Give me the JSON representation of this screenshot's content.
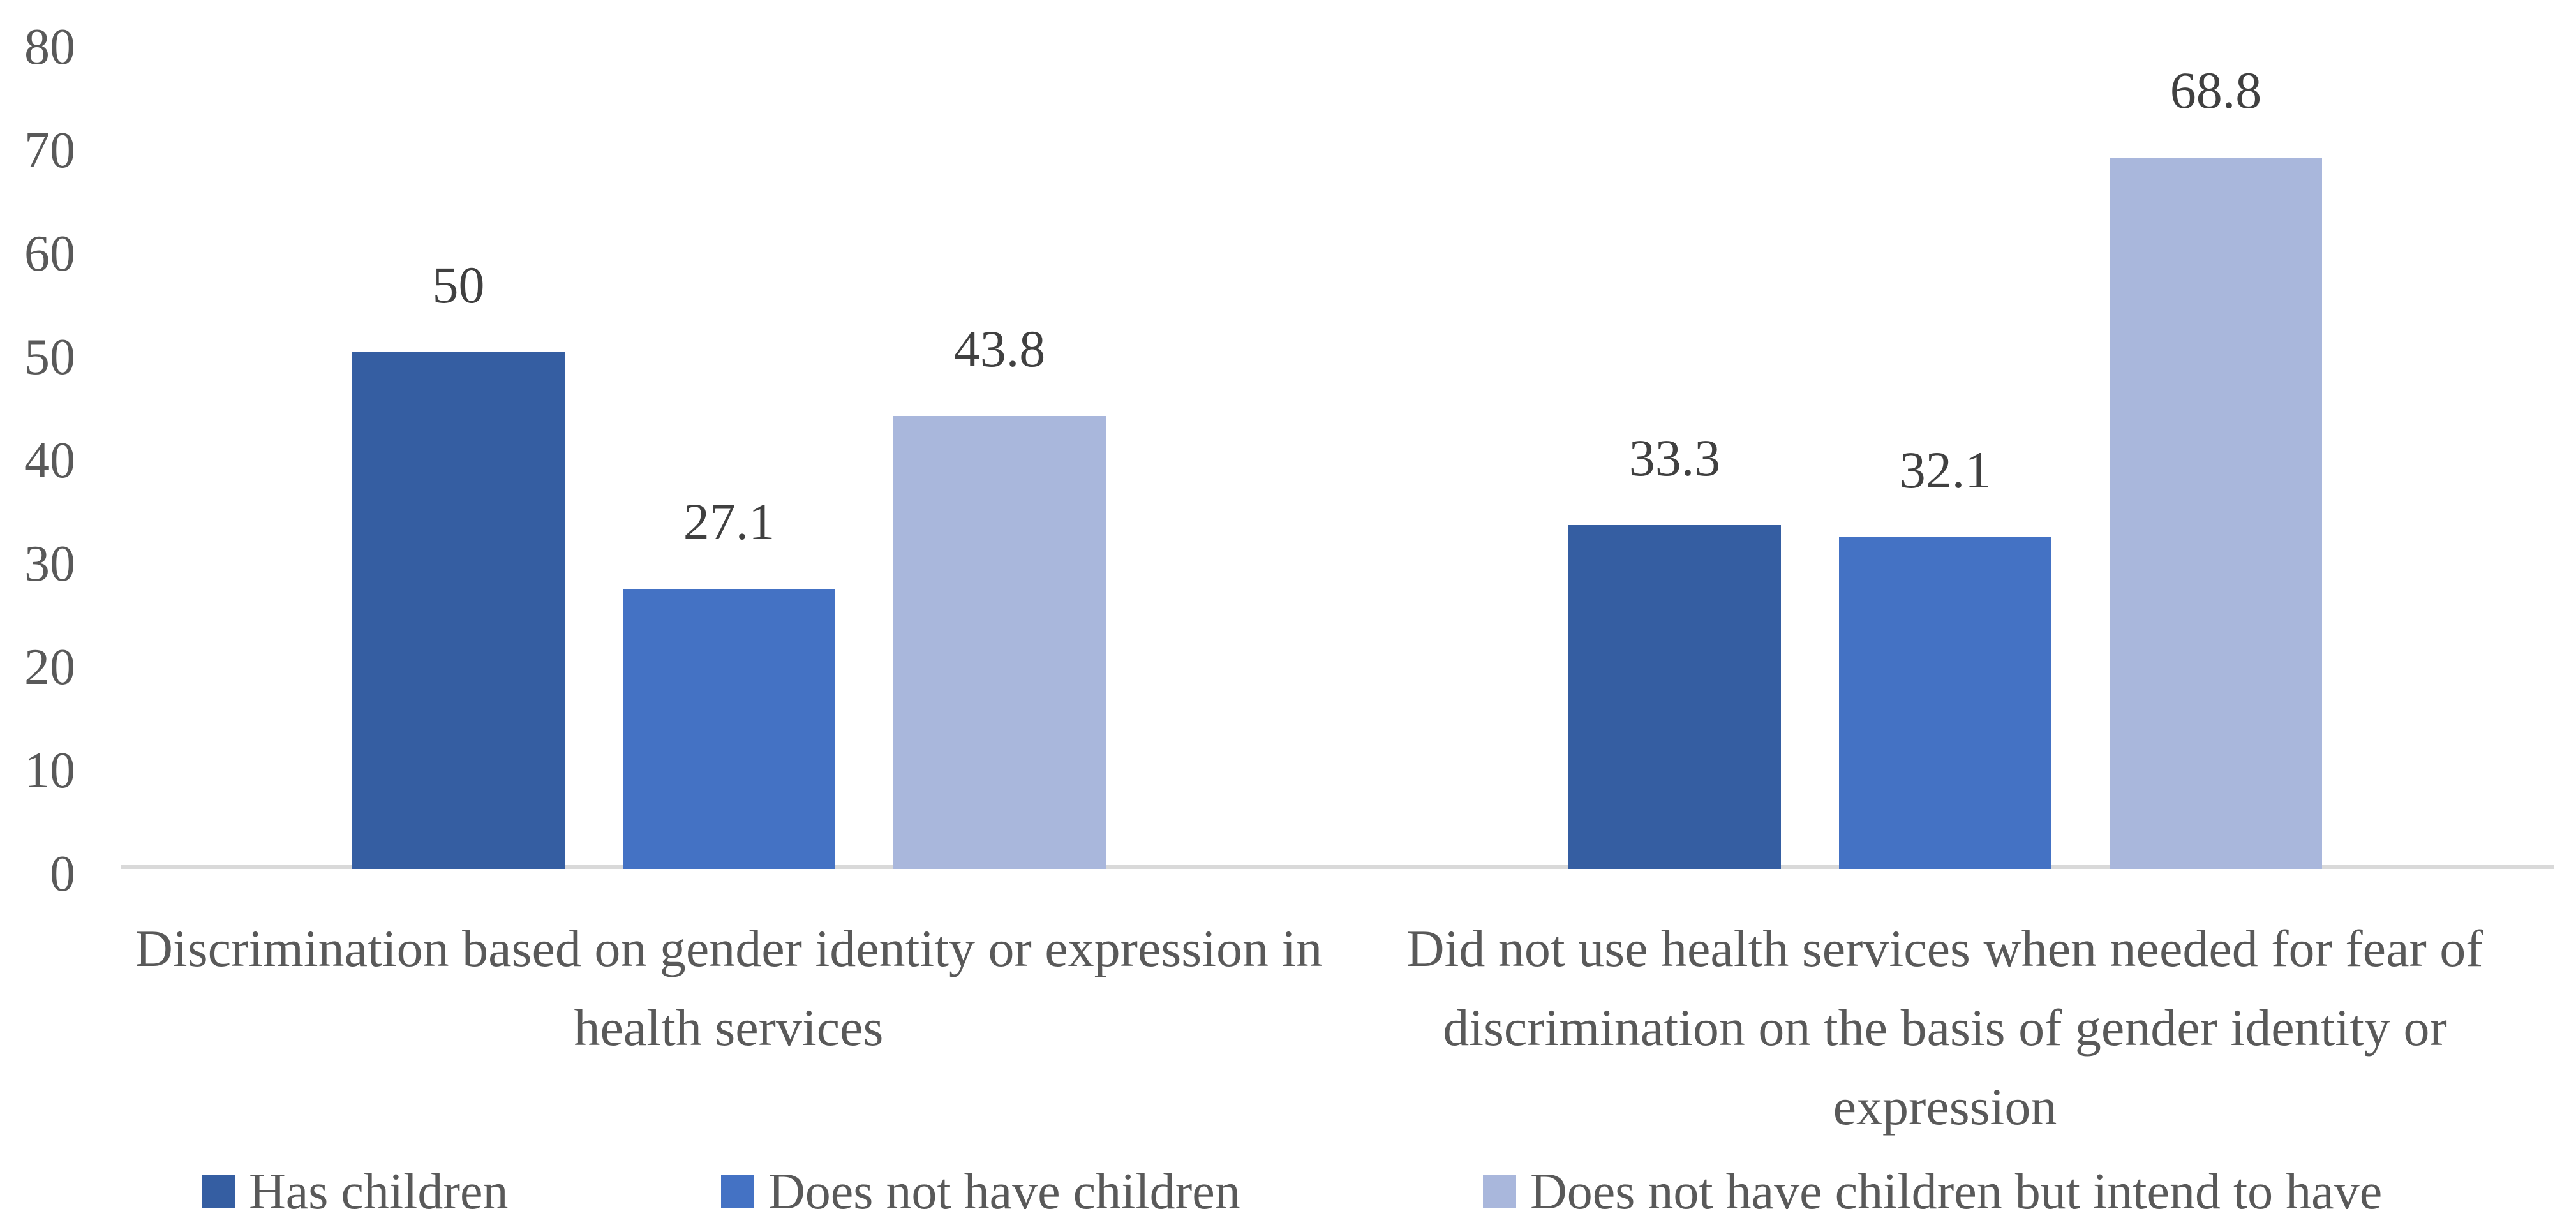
{
  "chart_data": {
    "type": "bar",
    "title": "",
    "subtitle": "",
    "xlabel": "",
    "ylabel": "",
    "ylim": [
      0,
      80
    ],
    "yticks": [
      0,
      10,
      20,
      30,
      40,
      50,
      60,
      70,
      80
    ],
    "grid": false,
    "legend_position": "bottom",
    "categories": [
      "Discrimination based on gender identity or expression in health services",
      "Did not use health services when needed for fear of discrimination on the basis of gender identity or expression"
    ],
    "category_lines": [
      [
        "Discrimination based on gender identity or expression in",
        "health services"
      ],
      [
        "Did not use health services when needed for fear of",
        "discrimination on the basis of gender identity or",
        "expression"
      ]
    ],
    "series": [
      {
        "name": "Has children",
        "color": "#355EA2",
        "values": [
          50,
          33.3
        ],
        "labels": [
          "50",
          "33.3"
        ]
      },
      {
        "name": "Does not have children",
        "color": "#4472C4",
        "values": [
          27.1,
          32.1
        ],
        "labels": [
          "27.1",
          "32.1"
        ]
      },
      {
        "name": "Does not have children but intend to have",
        "color": "#A9B7DC",
        "values": [
          43.8,
          68.8
        ],
        "labels": [
          "43.8",
          "68.8"
        ]
      }
    ],
    "colors": {
      "background": "#FFFFFF",
      "axis_line": "#D9D9D9",
      "tick_text": "#595959",
      "category_text": "#595959",
      "legend_text": "#595959",
      "data_label_text": "#404040"
    }
  }
}
